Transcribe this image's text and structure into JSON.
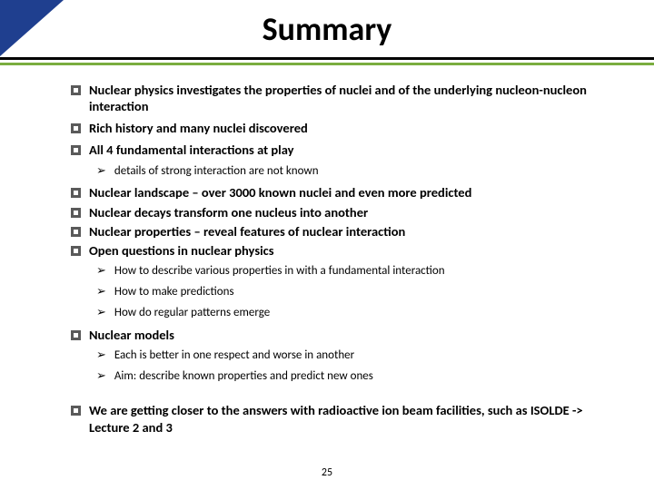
{
  "title": "Summary",
  "page_number": "25",
  "colors": {
    "corner": "#1f3f8f",
    "divider_top": "#000000",
    "divider_bottom": "#7aad3f",
    "bullet": "#5a5a5a"
  },
  "items": [
    {
      "type": "bullet",
      "text": "Nuclear physics investigates the properties of nuclei and of the underlying nucleon-nucleon interaction"
    },
    {
      "type": "bullet",
      "text": "Rich history and many nuclei discovered"
    },
    {
      "type": "bullet",
      "text": "All 4 fundamental interactions at play"
    },
    {
      "type": "sub",
      "text": "details of strong interaction are not known"
    },
    {
      "type": "bullet",
      "text": "Nuclear landscape – over 3000 known nuclei and even more predicted",
      "tight": true
    },
    {
      "type": "bullet",
      "text": "Nuclear decays transform one nucleus into another",
      "tight": true
    },
    {
      "type": "bullet",
      "text": "Nuclear properties – reveal features of nuclear interaction",
      "tight": true
    },
    {
      "type": "bullet",
      "text": "Open questions in nuclear physics"
    },
    {
      "type": "sub",
      "text": "How to describe various properties in with a fundamental interaction"
    },
    {
      "type": "sub",
      "text": "How to make predictions"
    },
    {
      "type": "sub",
      "text": "How do regular patterns emerge"
    },
    {
      "type": "bullet",
      "text": "Nuclear models"
    },
    {
      "type": "sub",
      "text": "Each is better in one respect and worse in another"
    },
    {
      "type": "sub",
      "text": "Aim: describe known properties and predict new ones"
    },
    {
      "type": "spacer"
    },
    {
      "type": "bullet",
      "text": "We are getting closer to the answers with radioactive ion beam facilities, such as ISOLDE -> Lecture 2 and 3"
    }
  ]
}
